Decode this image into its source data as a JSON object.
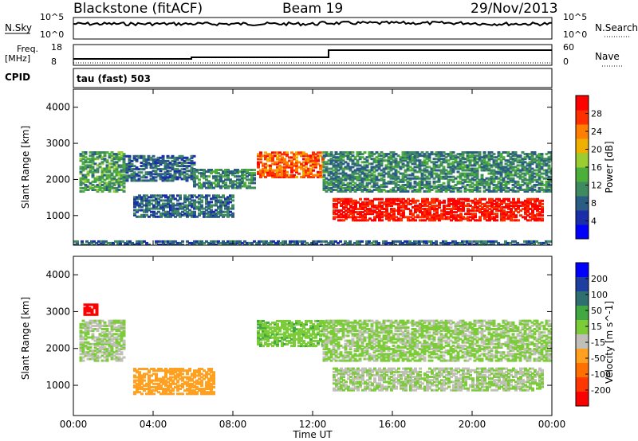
{
  "header": {
    "station": "Blackstone (fitACF)",
    "beam": "Beam 19",
    "date": "29/Nov/2013"
  },
  "strip_labels": {
    "nsky": "N.Sky",
    "nsky_ticks": [
      "10^5",
      "10^0"
    ],
    "nsearch": "N.Search",
    "nsearch_ticks": [
      "10^5",
      "10^0"
    ],
    "freq": "Freq.",
    "freq_unit": "[MHz]",
    "freq_ticks": [
      "18",
      "8"
    ],
    "nave": "Nave",
    "nave_ticks": [
      "60",
      "0"
    ],
    "cpid": "CPID",
    "cpid_text": "tau (fast) 503"
  },
  "colors": {
    "power_scale": [
      "#0000ff",
      "#1a2eaa",
      "#2b5d84",
      "#3f8a5e",
      "#4caf3a",
      "#9acd32",
      "#f0b000",
      "#ff8000",
      "#ff3000",
      "#ff0000"
    ],
    "velocity_scale": [
      "#0000ff",
      "#1f3fa0",
      "#2f6f6f",
      "#41a842",
      "#7ccc3a",
      "#c0c0b8",
      "#ffa020",
      "#ff7000",
      "#ff3800",
      "#ff0000"
    ]
  },
  "chart_data": [
    {
      "type": "heatmap",
      "name": "power",
      "xlabel": "",
      "ylabel": "Slant Range [km]",
      "x_ticks": [
        "00:00",
        "04:00",
        "08:00",
        "12:00",
        "16:00",
        "20:00",
        "00:00"
      ],
      "y_ticks": [
        "1000",
        "2000",
        "3000",
        "4000"
      ],
      "ylim": [
        180,
        4500
      ],
      "colorbar": {
        "label": "Power [dB]",
        "ticks": [
          "4",
          "8",
          "12",
          "16",
          "20",
          "24",
          "28"
        ],
        "range": [
          0,
          30
        ]
      },
      "regions": [
        {
          "t0": 0.3,
          "t1": 2.5,
          "r0": 1700,
          "r1": 2800,
          "level": 12
        },
        {
          "t0": 2.5,
          "t1": 6.0,
          "r0": 2000,
          "r1": 2700,
          "level": 8
        },
        {
          "t0": 3.0,
          "t1": 8.0,
          "r0": 1000,
          "r1": 1600,
          "level": 8
        },
        {
          "t0": 6.0,
          "t1": 9.0,
          "r0": 1800,
          "r1": 2300,
          "level": 10
        },
        {
          "t0": 9.2,
          "t1": 12.5,
          "r0": 2100,
          "r1": 2800,
          "level": 24
        },
        {
          "t0": 12.5,
          "t1": 24.0,
          "r0": 1700,
          "r1": 2800,
          "level": 10
        },
        {
          "t0": 13.0,
          "t1": 23.5,
          "r0": 900,
          "r1": 1500,
          "level": 28
        },
        {
          "t0": 0.0,
          "t1": 24.0,
          "r0": 180,
          "r1": 350,
          "level": 8
        }
      ]
    },
    {
      "type": "heatmap",
      "name": "velocity",
      "xlabel": "Time UT",
      "ylabel": "Slant Range [km]",
      "x_ticks": [
        "00:00",
        "04:00",
        "08:00",
        "12:00",
        "16:00",
        "20:00",
        "00:00"
      ],
      "y_ticks": [
        "1000",
        "2000",
        "3000",
        "4000"
      ],
      "ylim": [
        180,
        4500
      ],
      "colorbar": {
        "label": "Velocity [m s^-1]",
        "ticks": [
          "200",
          "100",
          "50",
          "15",
          "-15",
          "-50",
          "-100",
          "-200"
        ],
        "range": [
          -250,
          250
        ]
      },
      "regions": [
        {
          "t0": 0.3,
          "t1": 2.5,
          "r0": 1700,
          "r1": 2800,
          "level": 0
        },
        {
          "t0": 3.0,
          "t1": 7.0,
          "r0": 800,
          "r1": 1500,
          "level": -80
        },
        {
          "t0": 9.2,
          "t1": 12.5,
          "r0": 2100,
          "r1": 2800,
          "level": 40
        },
        {
          "t0": 13.0,
          "t1": 23.5,
          "r0": 900,
          "r1": 1500,
          "level": 0
        },
        {
          "t0": 12.5,
          "t1": 24.0,
          "r0": 1700,
          "r1": 2800,
          "level": 5
        },
        {
          "t0": 0.5,
          "t1": 1.2,
          "r0": 2950,
          "r1": 3250,
          "level": -220
        }
      ]
    }
  ]
}
